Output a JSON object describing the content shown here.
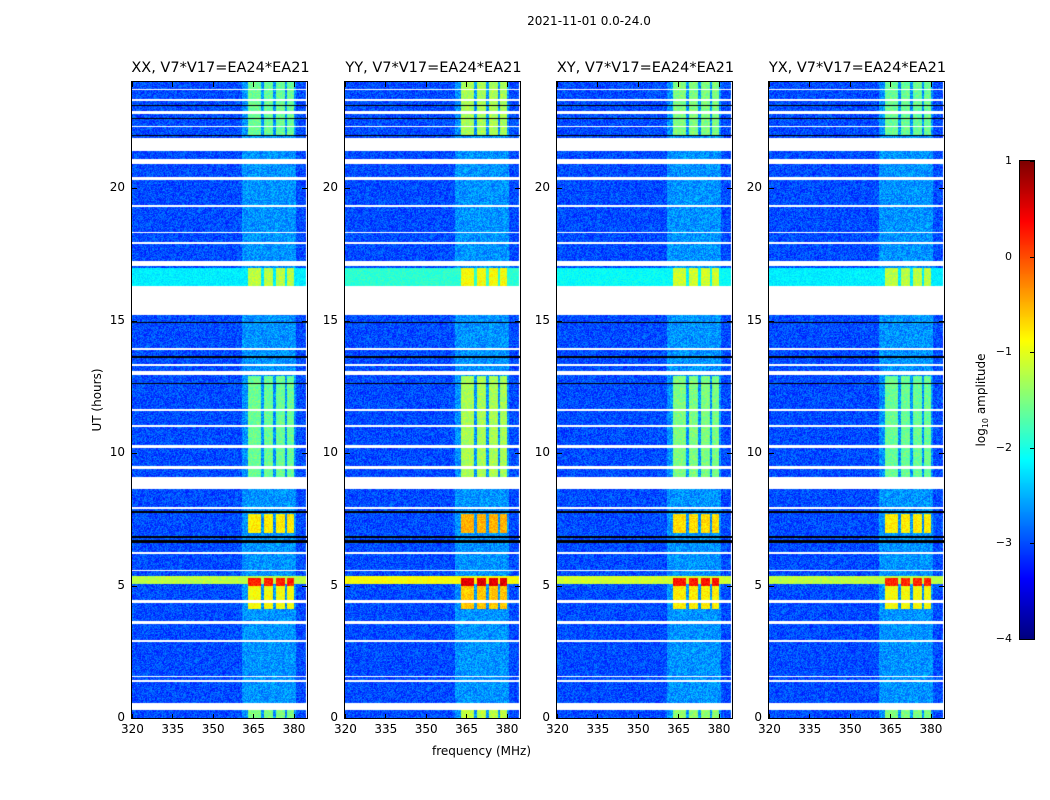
{
  "chart_data": {
    "type": "heatmap",
    "title": "2021-11-01 0.0-24.0",
    "xlabel": "frequency (MHz)",
    "ylabel": "UT (hours)",
    "xlim": [
      320,
      385
    ],
    "ylim": [
      0,
      24
    ],
    "xticks": [
      320,
      335,
      350,
      365,
      380
    ],
    "yticks": [
      0,
      5,
      10,
      15,
      20
    ],
    "panels": [
      {
        "title": "XX, V7*V17=EA24*EA21",
        "rfi_boost": 0.0
      },
      {
        "title": "YY, V7*V17=EA24*EA21",
        "rfi_boost": 0.3
      },
      {
        "title": "XY, V7*V17=EA24*EA21",
        "rfi_boost": 0.1
      },
      {
        "title": "YX, V7*V17=EA24*EA21",
        "rfi_boost": 0.0
      }
    ],
    "colorbar": {
      "label_prefix": "log",
      "label_sub": "10",
      "label_suffix": " amplitude",
      "colormap": "jet",
      "range": [
        -4,
        1
      ],
      "ticks": [
        1,
        0,
        -1,
        -2,
        -3,
        -4
      ]
    },
    "background_log_amplitude": -3.0,
    "flagged_hours": [
      [
        0.3,
        0.55
      ],
      [
        1.35,
        1.45
      ],
      [
        1.55,
        1.6
      ],
      [
        2.85,
        2.95
      ],
      [
        3.55,
        3.65
      ],
      [
        4.35,
        4.45
      ],
      [
        5.55,
        5.6
      ],
      [
        6.2,
        6.25
      ],
      [
        7.9,
        7.95
      ],
      [
        8.65,
        9.1
      ],
      [
        9.4,
        9.5
      ],
      [
        10.2,
        10.3
      ],
      [
        11.0,
        11.05
      ],
      [
        11.6,
        11.65
      ],
      [
        12.95,
        13.1
      ],
      [
        13.3,
        13.35
      ],
      [
        13.9,
        13.95
      ],
      [
        15.2,
        16.3
      ],
      [
        17.05,
        17.25
      ],
      [
        17.9,
        17.95
      ],
      [
        18.3,
        18.35
      ],
      [
        19.3,
        19.35
      ],
      [
        20.3,
        20.4
      ],
      [
        20.9,
        21.1
      ],
      [
        21.4,
        21.9
      ],
      [
        22.3,
        22.35
      ],
      [
        22.8,
        22.9
      ],
      [
        23.3,
        23.35
      ],
      [
        23.7,
        23.75
      ]
    ],
    "dropout_hours": [
      [
        6.6,
        6.7
      ],
      [
        6.8,
        6.85
      ],
      [
        7.75,
        7.8
      ],
      [
        12.6,
        12.65
      ],
      [
        13.6,
        13.65
      ],
      [
        14.9,
        14.95
      ],
      [
        21.95,
        22.0
      ],
      [
        22.6,
        22.65
      ],
      [
        23.1,
        23.15
      ]
    ],
    "rfi_channels_mhz": [
      [
        363,
        368
      ],
      [
        369,
        372.5
      ],
      [
        373.5,
        377
      ],
      [
        377.5,
        380
      ]
    ],
    "rfi_events": [
      {
        "hours": [
          4.1,
          5.0
        ],
        "log_amplitude": -0.9
      },
      {
        "hours": [
          5.0,
          5.3
        ],
        "log_amplitude": 0.2
      },
      {
        "hours": [
          7.0,
          7.7
        ],
        "log_amplitude": -0.8
      },
      {
        "hours": [
          9.0,
          12.9
        ],
        "log_amplitude": -1.6
      },
      {
        "hours": [
          16.3,
          17.0
        ],
        "log_amplitude": -1.2
      },
      {
        "hours": [
          22.0,
          24.0
        ],
        "log_amplitude": -1.6
      },
      {
        "hours": [
          0.0,
          0.3
        ],
        "log_amplitude": -1.5
      }
    ],
    "broadband_events": [
      {
        "hours": [
          5.05,
          5.35
        ],
        "log_amplitude": -1.2
      },
      {
        "hours": [
          16.3,
          17.0
        ],
        "log_amplitude": -2.2
      }
    ]
  }
}
